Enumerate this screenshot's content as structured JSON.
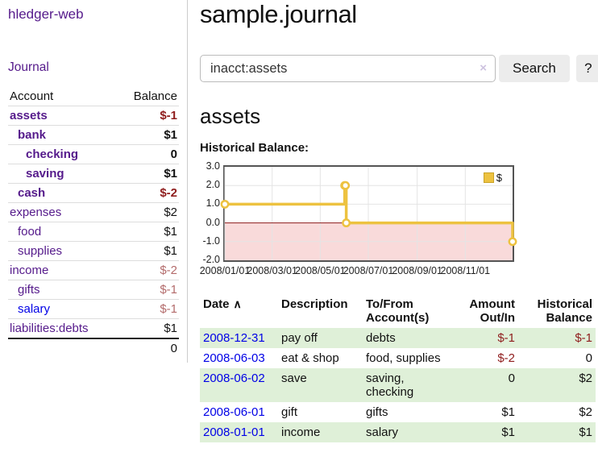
{
  "brand": "hledger-web",
  "sidebar": {
    "journal_link": "Journal",
    "account_header": "Account",
    "balance_header": "Balance",
    "accounts": [
      {
        "name": "assets",
        "indent": 0,
        "balance": "$-1",
        "bold": true,
        "negative": true,
        "unvisited": false
      },
      {
        "name": "bank",
        "indent": 1,
        "balance": "$1",
        "bold": true,
        "negative": false,
        "unvisited": false
      },
      {
        "name": "checking",
        "indent": 2,
        "balance": "0",
        "bold": true,
        "negative": false,
        "unvisited": false
      },
      {
        "name": "saving",
        "indent": 2,
        "balance": "$1",
        "bold": true,
        "negative": false,
        "unvisited": false
      },
      {
        "name": "cash",
        "indent": 1,
        "balance": "$-2",
        "bold": true,
        "negative": true,
        "unvisited": false
      },
      {
        "name": "expenses",
        "indent": 0,
        "balance": "$2",
        "bold": false,
        "negative": false,
        "unvisited": false
      },
      {
        "name": "food",
        "indent": 1,
        "balance": "$1",
        "bold": false,
        "negative": false,
        "unvisited": false
      },
      {
        "name": "supplies",
        "indent": 1,
        "balance": "$1",
        "bold": false,
        "negative": false,
        "unvisited": false
      },
      {
        "name": "income",
        "indent": 0,
        "balance": "$-2",
        "bold": false,
        "negative": true,
        "unvisited": false
      },
      {
        "name": "gifts",
        "indent": 1,
        "balance": "$-1",
        "bold": false,
        "negative": true,
        "unvisited": false
      },
      {
        "name": "salary",
        "indent": 1,
        "balance": "$-1",
        "bold": false,
        "negative": true,
        "unvisited": true
      },
      {
        "name": "liabilities:debts",
        "indent": 0,
        "balance": "$1",
        "bold": false,
        "negative": false,
        "unvisited": false
      }
    ],
    "total": "0"
  },
  "main": {
    "title": "sample.journal",
    "search": {
      "query": "inacct:assets",
      "clear_icon": "×",
      "search_button": "Search",
      "help_button": "?"
    },
    "account_heading": "assets",
    "chart_title": "Historical Balance:"
  },
  "chart_data": {
    "type": "line",
    "step": true,
    "title": "Historical Balance:",
    "xdomain": [
      "2008-01-01",
      "2008-12-31"
    ],
    "ylim": [
      -2,
      3
    ],
    "x_ticks": [
      "2008/01/01",
      "2008/03/01",
      "2008/05/01",
      "2008/07/01",
      "2008/09/01",
      "2008/11/01"
    ],
    "y_ticks": [
      "3.0",
      "2.0",
      "1.0",
      "0.0",
      "-1.0",
      "-2.0"
    ],
    "series": [
      {
        "name": "$",
        "points": [
          {
            "date": "2008-01-01",
            "value": 1
          },
          {
            "date": "2008-06-01",
            "value": 2
          },
          {
            "date": "2008-06-02",
            "value": 2
          },
          {
            "date": "2008-06-03",
            "value": 0
          },
          {
            "date": "2008-12-31",
            "value": -1
          }
        ]
      }
    ],
    "legend": {
      "label": "$",
      "position": "top-right"
    },
    "grid": true,
    "colors": {
      "line": "#edc240",
      "marker_fill": "#ffffff",
      "negative_region": "#f9dada",
      "zero_line": "#8b1a1a",
      "grid": "#e4e4e4",
      "border": "#545454"
    }
  },
  "register": {
    "headers": {
      "date": "Date",
      "sort_icon": "∧",
      "description": "Description",
      "accounts": "To/From Account(s)",
      "amount": "Amount Out/In",
      "balance": "Historical Balance"
    },
    "rows": [
      {
        "date": "2008-12-31",
        "description": "pay off",
        "accounts": "debts",
        "amount": "$-1",
        "amount_negative": true,
        "balance": "$-1",
        "balance_negative": true
      },
      {
        "date": "2008-06-03",
        "description": "eat & shop",
        "accounts": "food, supplies",
        "amount": "$-2",
        "amount_negative": true,
        "balance": "0",
        "balance_negative": false
      },
      {
        "date": "2008-06-02",
        "description": "save",
        "accounts": "saving, checking",
        "amount": "0",
        "amount_negative": false,
        "balance": "$2",
        "balance_negative": false
      },
      {
        "date": "2008-06-01",
        "description": "gift",
        "accounts": "gifts",
        "amount": "$1",
        "amount_negative": false,
        "balance": "$2",
        "balance_negative": false
      },
      {
        "date": "2008-01-01",
        "description": "income",
        "accounts": "salary",
        "amount": "$1",
        "amount_negative": false,
        "balance": "$1",
        "balance_negative": false
      }
    ]
  }
}
